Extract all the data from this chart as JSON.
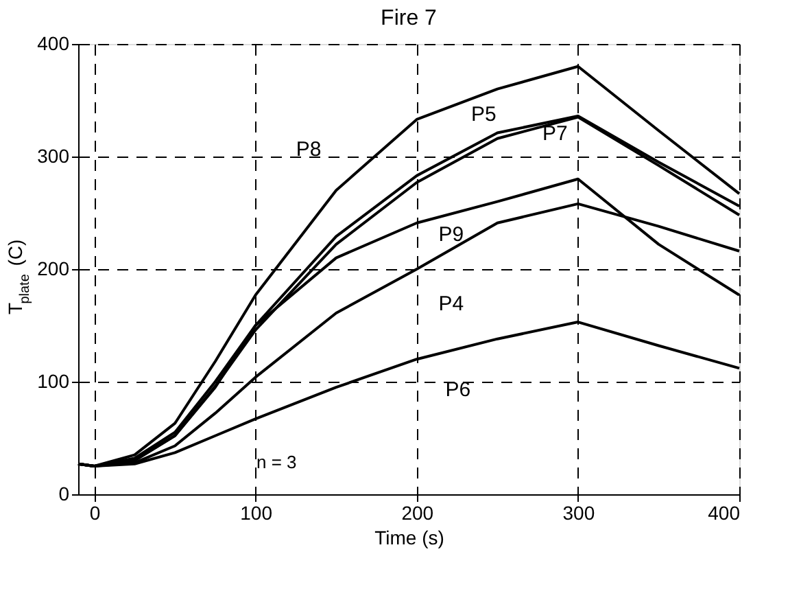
{
  "chart_data": {
    "type": "line",
    "title": "Fire 7",
    "xlabel": "Time (s)",
    "ylabel": "T$_{plate}$ (C)",
    "x": [
      -10,
      0,
      25,
      50,
      75,
      100,
      150,
      200,
      250,
      300,
      350,
      400
    ],
    "series": [
      {
        "name": "P8",
        "color": "#000000",
        "values": [
          27,
          25,
          35,
          63,
          118,
          177,
          270,
          333,
          360,
          380,
          323,
          267
        ]
      },
      {
        "name": "P5",
        "color": "#000000",
        "values": [
          27,
          25,
          32,
          55,
          100,
          150,
          229,
          283,
          321,
          336,
          295,
          256
        ]
      },
      {
        "name": "P7",
        "color": "#000000",
        "values": [
          27,
          25,
          30,
          52,
          96,
          146,
          222,
          277,
          316,
          335,
          292,
          248
        ]
      },
      {
        "name": "P9",
        "color": "#000000",
        "values": [
          27,
          25,
          30,
          52,
          95,
          150,
          210,
          241,
          260,
          280,
          222,
          177
        ]
      },
      {
        "name": "P4",
        "color": "#000000",
        "values": [
          27,
          25,
          28,
          43,
          72,
          104,
          161,
          200,
          241,
          258,
          238,
          216
        ]
      },
      {
        "name": "P6",
        "color": "#000000",
        "values": [
          27,
          25,
          27,
          37,
          52,
          67,
          95,
          120,
          138,
          153,
          132,
          112
        ]
      }
    ],
    "annotations": [
      "n = 3"
    ],
    "xlim": [
      -10,
      400
    ],
    "xticks": [
      0,
      100,
      200,
      300,
      400
    ],
    "ylim": [
      0,
      400
    ],
    "yticks": [
      0,
      100,
      200,
      300,
      400
    ],
    "grid": true,
    "legend": false,
    "marker": "none",
    "line_style": "solid"
  }
}
